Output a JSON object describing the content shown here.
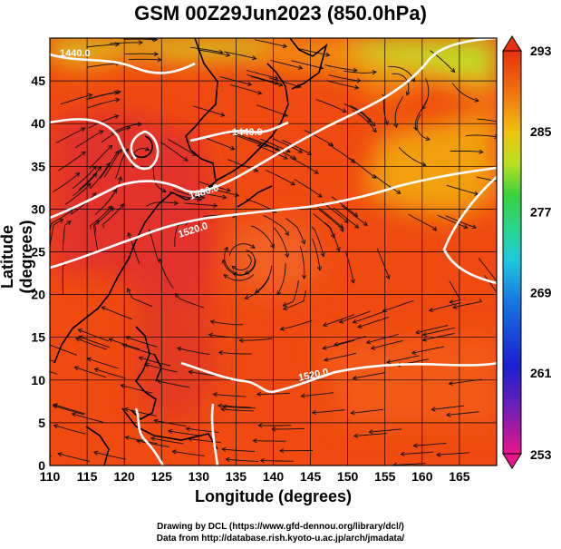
{
  "title": "GSM 00Z29Jun2023 (850.0hPa)",
  "x_axis": {
    "label": "Longitude (degrees)",
    "range": [
      110,
      170
    ],
    "ticks": [
      "110",
      "115",
      "120",
      "125",
      "130",
      "135",
      "140",
      "145",
      "150",
      "155",
      "160",
      "165"
    ]
  },
  "y_axis": {
    "label": "Latitude  (degrees)",
    "range": [
      0,
      50
    ],
    "ticks": [
      "0",
      "5",
      "10",
      "15",
      "20",
      "25",
      "30",
      "35",
      "40",
      "45"
    ]
  },
  "colorbar": {
    "ticks": [
      "293",
      "285",
      "277",
      "269",
      "261",
      "253"
    ],
    "range": [
      253,
      293
    ],
    "colors": [
      "#e8148c",
      "#6a1fb8",
      "#1a1fd0",
      "#1878e0",
      "#1ec8e0",
      "#2ad68a",
      "#39d040",
      "#b8e020",
      "#f0c010",
      "#f07010",
      "#e83010"
    ]
  },
  "contours": [
    {
      "label": "1440.0"
    },
    {
      "label": "1440.0"
    },
    {
      "label": "1480.0"
    },
    {
      "label": "1520.0"
    },
    {
      "label": "1520.0"
    }
  ],
  "credits": {
    "line1": "Drawing by DCL (https://www.gfd-dennou.org/library/dcl/)",
    "line2": "Data from http://database.rish.kyoto-u.ac.jp/arch/jmadata/"
  },
  "colors": {
    "warm": "#f04a10",
    "hot": "#e2302a",
    "mild": "#f29010",
    "cool": "#b8e020",
    "contour": "#ffffff",
    "coast": "#000000"
  }
}
